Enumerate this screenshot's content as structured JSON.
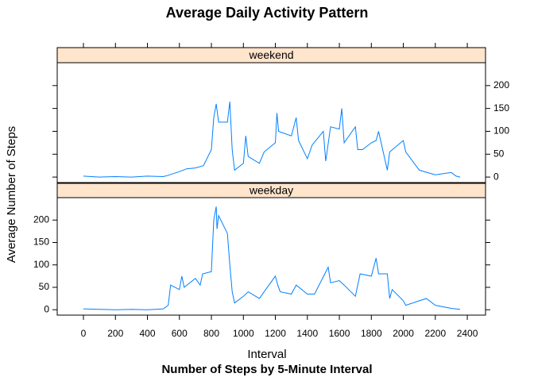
{
  "chart_data": {
    "type": "line",
    "title": "Average Daily Activity Pattern",
    "xlabel": "Interval",
    "subtitle": "Number of Steps by 5-Minute Interval",
    "ylabel": "Average Number of Steps",
    "color": "#0080ff",
    "xlim": [
      -164,
      2514
    ],
    "ylim": [
      -12,
      250
    ],
    "xticks": [
      0,
      200,
      400,
      600,
      800,
      1000,
      1200,
      1400,
      1600,
      1800,
      2000,
      2200,
      2400
    ],
    "yticks": [
      0,
      50,
      100,
      150,
      200
    ],
    "panels": [
      {
        "name": "weekend",
        "x": [
          0,
          100,
          200,
          300,
          400,
          500,
          530,
          600,
          645,
          700,
          750,
          800,
          815,
          830,
          845,
          900,
          915,
          930,
          945,
          1000,
          1015,
          1030,
          1100,
          1130,
          1200,
          1210,
          1220,
          1300,
          1330,
          1345,
          1400,
          1430,
          1500,
          1515,
          1545,
          1600,
          1615,
          1630,
          1700,
          1715,
          1745,
          1800,
          1830,
          1845,
          1900,
          1915,
          2000,
          2015,
          2100,
          2200,
          2300,
          2330,
          2355
        ],
        "values": [
          2,
          0,
          1,
          0,
          2,
          1,
          4,
          12,
          18,
          20,
          25,
          60,
          130,
          160,
          120,
          120,
          165,
          60,
          15,
          30,
          90,
          45,
          30,
          55,
          75,
          140,
          100,
          90,
          130,
          80,
          40,
          70,
          100,
          35,
          110,
          105,
          150,
          75,
          110,
          60,
          60,
          75,
          80,
          100,
          15,
          55,
          80,
          55,
          15,
          5,
          10,
          2,
          0
        ]
      },
      {
        "name": "weekday",
        "x": [
          0,
          100,
          200,
          300,
          400,
          500,
          530,
          545,
          600,
          615,
          630,
          700,
          730,
          745,
          800,
          815,
          830,
          835,
          845,
          900,
          915,
          930,
          945,
          1000,
          1030,
          1100,
          1130,
          1200,
          1215,
          1230,
          1300,
          1330,
          1400,
          1445,
          1530,
          1545,
          1600,
          1630,
          1700,
          1730,
          1800,
          1830,
          1845,
          1900,
          1915,
          1930,
          2000,
          2015,
          2100,
          2145,
          2200,
          2300,
          2355
        ],
        "values": [
          2,
          1,
          0,
          1,
          0,
          2,
          10,
          55,
          45,
          75,
          50,
          70,
          55,
          80,
          85,
          200,
          230,
          180,
          210,
          170,
          100,
          40,
          15,
          30,
          40,
          25,
          40,
          75,
          55,
          40,
          35,
          55,
          35,
          35,
          95,
          60,
          65,
          55,
          30,
          80,
          75,
          115,
          80,
          80,
          25,
          45,
          20,
          10,
          20,
          25,
          10,
          3,
          1
        ]
      }
    ]
  }
}
